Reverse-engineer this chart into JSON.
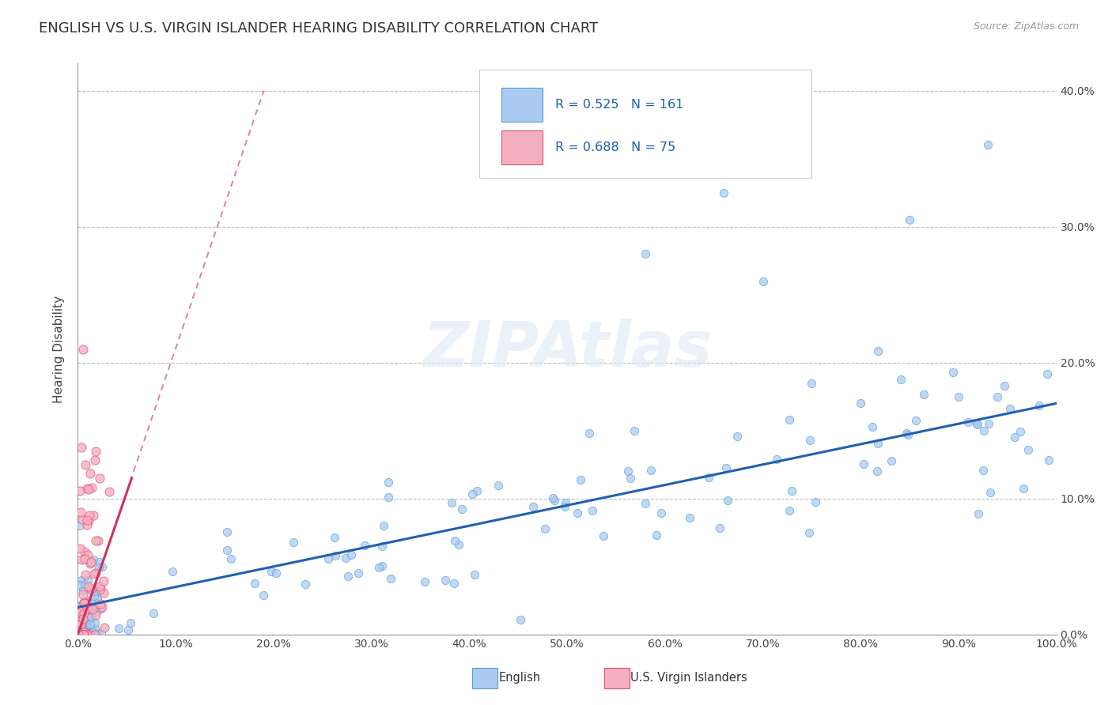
{
  "title": "ENGLISH VS U.S. VIRGIN ISLANDER HEARING DISABILITY CORRELATION CHART",
  "source": "Source: ZipAtlas.com",
  "ylabel": "Hearing Disability",
  "xlim": [
    0,
    1.0
  ],
  "ylim": [
    0,
    0.42
  ],
  "xticks": [
    0.0,
    0.1,
    0.2,
    0.3,
    0.4,
    0.5,
    0.6,
    0.7,
    0.8,
    0.9,
    1.0
  ],
  "xtick_labels": [
    "0.0%",
    "10.0%",
    "20.0%",
    "30.0%",
    "40.0%",
    "50.0%",
    "60.0%",
    "70.0%",
    "80.0%",
    "90.0%",
    "100.0%"
  ],
  "yticks": [
    0.0,
    0.1,
    0.2,
    0.3,
    0.4
  ],
  "ytick_labels_right": [
    "0.0%",
    "10.0%",
    "20.0%",
    "30.0%",
    "40.0%"
  ],
  "english_color": "#aacbf0",
  "english_edge": "#5b9bd5",
  "vi_color": "#f4b0c0",
  "vi_edge": "#e05070",
  "trend_english_color": "#2060b0",
  "trend_vi_color": "#d03060",
  "trend_vi_dashed_color": "#e080a0",
  "R_english": 0.525,
  "N_english": 161,
  "R_vi": 0.688,
  "N_vi": 75,
  "legend_english": "English",
  "legend_vi": "U.S. Virgin Islanders",
  "watermark": "ZIPAtlas",
  "background_color": "#ffffff",
  "grid_color": "#bbbbbb",
  "title_fontsize": 13,
  "axis_label_fontsize": 11,
  "tick_fontsize": 10,
  "english_trend_x0": 0.0,
  "english_trend_y0": 0.02,
  "english_trend_x1": 1.0,
  "english_trend_y1": 0.17,
  "vi_trend_solid_x0": 0.0,
  "vi_trend_solid_y0": 0.0,
  "vi_trend_solid_x1": 0.055,
  "vi_trend_solid_y1": 0.115,
  "vi_trend_dashed_x0": 0.0,
  "vi_trend_dashed_y0": 0.0,
  "vi_trend_dashed_x1": 0.19,
  "vi_trend_dashed_y1": 0.4
}
